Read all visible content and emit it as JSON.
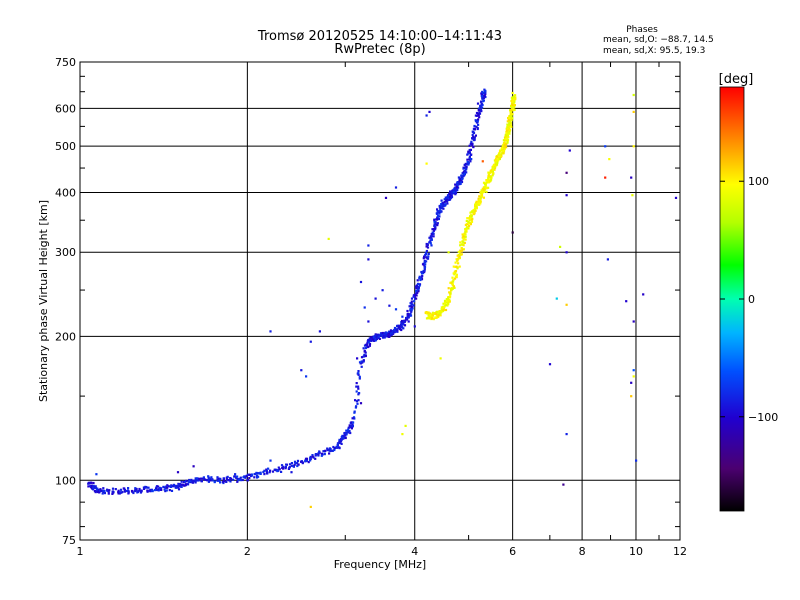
{
  "chart_data": {
    "type": "scatter",
    "title": "Tromsø 20120525 14:10:00–14:11:43",
    "subtitle": "RwPretec (8p)",
    "xlabel": "Frequency [MHz]",
    "ylabel": "Stationary phase Virtual Height [km]",
    "xscale": "log",
    "yscale": "log",
    "xlim": [
      1,
      12
    ],
    "ylim": [
      75,
      750
    ],
    "xticks": [
      1,
      2,
      4,
      6,
      8,
      10,
      12
    ],
    "xtick_labels": [
      "1",
      "2",
      "4",
      "6",
      "8",
      "10",
      "12"
    ],
    "yticks": [
      75,
      100,
      200,
      300,
      400,
      500,
      600,
      750
    ],
    "ytick_labels": [
      "75",
      "100",
      "200",
      "300",
      "400",
      "500",
      "600",
      "750"
    ],
    "grid": true,
    "phases_box": {
      "title": "Phases",
      "line1": "mean, sd,O: −88.7, 14.5",
      "line2": "mean, sd,X:  95.5, 19.3"
    },
    "colorbar": {
      "label": "[deg]",
      "range": [
        -180,
        180
      ],
      "ticks": [
        100,
        0,
        -100
      ],
      "tick_labels": [
        "100",
        "0",
        "−100"
      ],
      "position": "right"
    },
    "colors": {
      "o_mode": "#1a4fe8",
      "x_mode": "#f0c800"
    },
    "series": [
      {
        "name": "",
        "mode": "O",
        "phase_mean": -88.7,
        "curve": [
          [
            1.04,
            98
          ],
          [
            1.06,
            96
          ],
          [
            1.1,
            95
          ],
          [
            1.2,
            95
          ],
          [
            1.3,
            95.5
          ],
          [
            1.4,
            96
          ],
          [
            1.5,
            97
          ],
          [
            1.55,
            99
          ],
          [
            1.65,
            101
          ],
          [
            1.8,
            100
          ],
          [
            1.95,
            101
          ],
          [
            2.1,
            103
          ],
          [
            2.3,
            106
          ],
          [
            2.5,
            109
          ],
          [
            2.7,
            113
          ],
          [
            2.9,
            118
          ],
          [
            3.0,
            124
          ],
          [
            3.1,
            132
          ],
          [
            3.2,
            175
          ],
          [
            3.3,
            195
          ],
          [
            3.4,
            200
          ],
          [
            3.5,
            201
          ],
          [
            3.6,
            202
          ],
          [
            3.7,
            206
          ],
          [
            3.8,
            212
          ],
          [
            3.9,
            222
          ],
          [
            4.0,
            240
          ],
          [
            4.1,
            265
          ],
          [
            4.2,
            295
          ],
          [
            4.3,
            330
          ],
          [
            4.4,
            360
          ],
          [
            4.5,
            378
          ],
          [
            4.6,
            390
          ],
          [
            4.7,
            400
          ],
          [
            4.8,
            415
          ],
          [
            4.9,
            440
          ],
          [
            5.0,
            470
          ],
          [
            5.1,
            520
          ],
          [
            5.2,
            580
          ],
          [
            5.3,
            630
          ],
          [
            5.35,
            650
          ]
        ],
        "extra_points": [
          [
            1.07,
            103
          ],
          [
            1.5,
            104
          ],
          [
            1.6,
            107
          ],
          [
            1.7,
            102
          ],
          [
            2.2,
            110
          ],
          [
            2.4,
            104
          ],
          [
            2.6,
            112
          ],
          [
            2.8,
            116
          ],
          [
            2.5,
            170
          ],
          [
            2.55,
            165
          ],
          [
            2.7,
            205
          ],
          [
            2.6,
            195
          ],
          [
            3.3,
            290
          ],
          [
            3.2,
            260
          ],
          [
            3.25,
            230
          ],
          [
            3.3,
            215
          ],
          [
            3.4,
            240
          ],
          [
            3.5,
            250
          ],
          [
            3.6,
            232
          ],
          [
            3.7,
            228
          ],
          [
            3.8,
            220
          ],
          [
            3.9,
            215
          ],
          [
            4.0,
            210
          ],
          [
            3.55,
            390
          ],
          [
            3.7,
            410
          ],
          [
            4.2,
            580
          ],
          [
            4.25,
            590
          ],
          [
            3.3,
            310
          ],
          [
            3.2,
            145
          ],
          [
            3.15,
            180
          ],
          [
            2.2,
            205
          ],
          [
            7.5,
            395
          ],
          [
            7.5,
            300
          ],
          [
            8.9,
            290
          ],
          [
            9.6,
            237
          ],
          [
            9.9,
            215
          ],
          [
            8.8,
            500
          ],
          [
            9.8,
            430
          ],
          [
            10.3,
            245
          ],
          [
            11.8,
            390
          ],
          [
            7.0,
            175
          ],
          [
            10.0,
            110
          ],
          [
            9.8,
            160
          ],
          [
            7.5,
            125
          ],
          [
            2.0,
            100
          ],
          [
            1.9,
            103
          ]
        ]
      },
      {
        "name": "",
        "mode": "X",
        "phase_mean": 95.5,
        "curve": [
          [
            4.2,
            222
          ],
          [
            4.3,
            220
          ],
          [
            4.4,
            222
          ],
          [
            4.5,
            228
          ],
          [
            4.6,
            240
          ],
          [
            4.7,
            262
          ],
          [
            4.8,
            292
          ],
          [
            4.9,
            320
          ],
          [
            5.0,
            345
          ],
          [
            5.1,
            365
          ],
          [
            5.2,
            380
          ],
          [
            5.3,
            400
          ],
          [
            5.4,
            420
          ],
          [
            5.5,
            440
          ],
          [
            5.6,
            460
          ],
          [
            5.7,
            480
          ],
          [
            5.8,
            500
          ],
          [
            5.85,
            520
          ],
          [
            5.9,
            545
          ],
          [
            5.95,
            575
          ],
          [
            6.0,
            610
          ],
          [
            6.02,
            640
          ]
        ],
        "extra_points": [
          [
            4.6,
            300
          ],
          [
            4.7,
            280
          ],
          [
            6.0,
            620
          ],
          [
            5.95,
            590
          ],
          [
            9.9,
            590
          ],
          [
            9.85,
            395
          ],
          [
            8.95,
            470
          ],
          [
            9.9,
            500
          ],
          [
            9.9,
            640
          ],
          [
            9.9,
            165
          ],
          [
            9.8,
            150
          ],
          [
            7.3,
            308
          ],
          [
            7.5,
            233
          ],
          [
            4.45,
            180
          ],
          [
            3.8,
            125
          ],
          [
            3.85,
            130
          ],
          [
            2.8,
            320
          ],
          [
            2.6,
            88
          ],
          [
            4.2,
            460
          ]
        ]
      },
      {
        "name": "",
        "mode": "other",
        "points": [
          [
            7.4,
            98
          ],
          [
            7.6,
            490
          ],
          [
            7.5,
            440
          ],
          [
            8.8,
            430
          ],
          [
            9.9,
            170
          ],
          [
            7.2,
            240
          ],
          [
            5.3,
            465
          ],
          [
            6.0,
            330
          ]
        ],
        "phases": [
          -130,
          -100,
          -140,
          170,
          -60,
          -20,
          150,
          -160
        ]
      }
    ]
  }
}
